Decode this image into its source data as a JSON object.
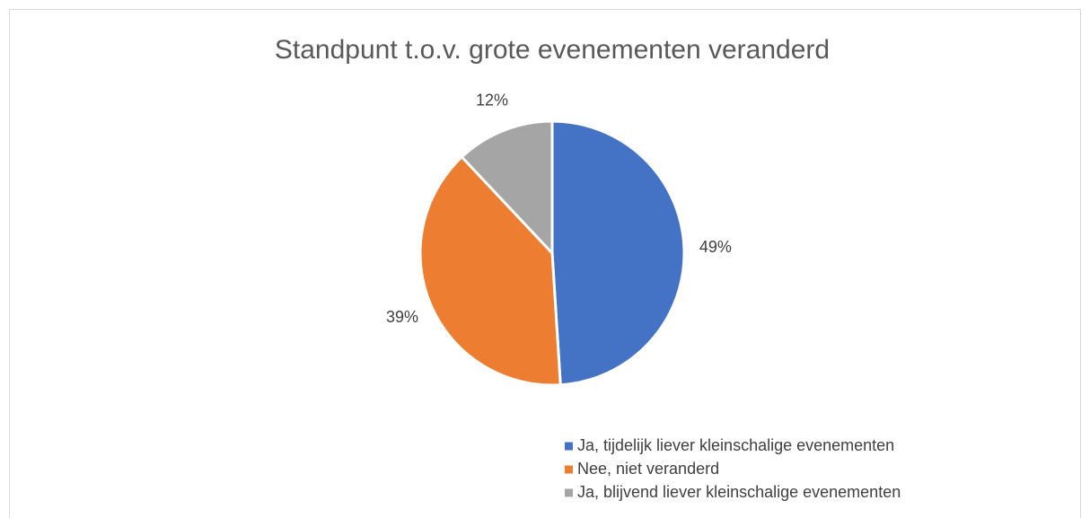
{
  "chart_data": {
    "type": "pie",
    "title": "Standpunt t.o.v. grote evenementen veranderd",
    "categories": [
      "Ja, tijdelijk liever kleinschalige evenementen",
      "Nee, niet veranderd",
      "Ja, blijvend liever kleinschalige evenementen"
    ],
    "values": [
      49,
      39,
      12
    ],
    "value_labels": [
      "49%",
      "39%",
      "12%"
    ],
    "colors": [
      "#4472c4",
      "#ed7d31",
      "#a5a5a5"
    ],
    "legend": "bottom-right"
  }
}
